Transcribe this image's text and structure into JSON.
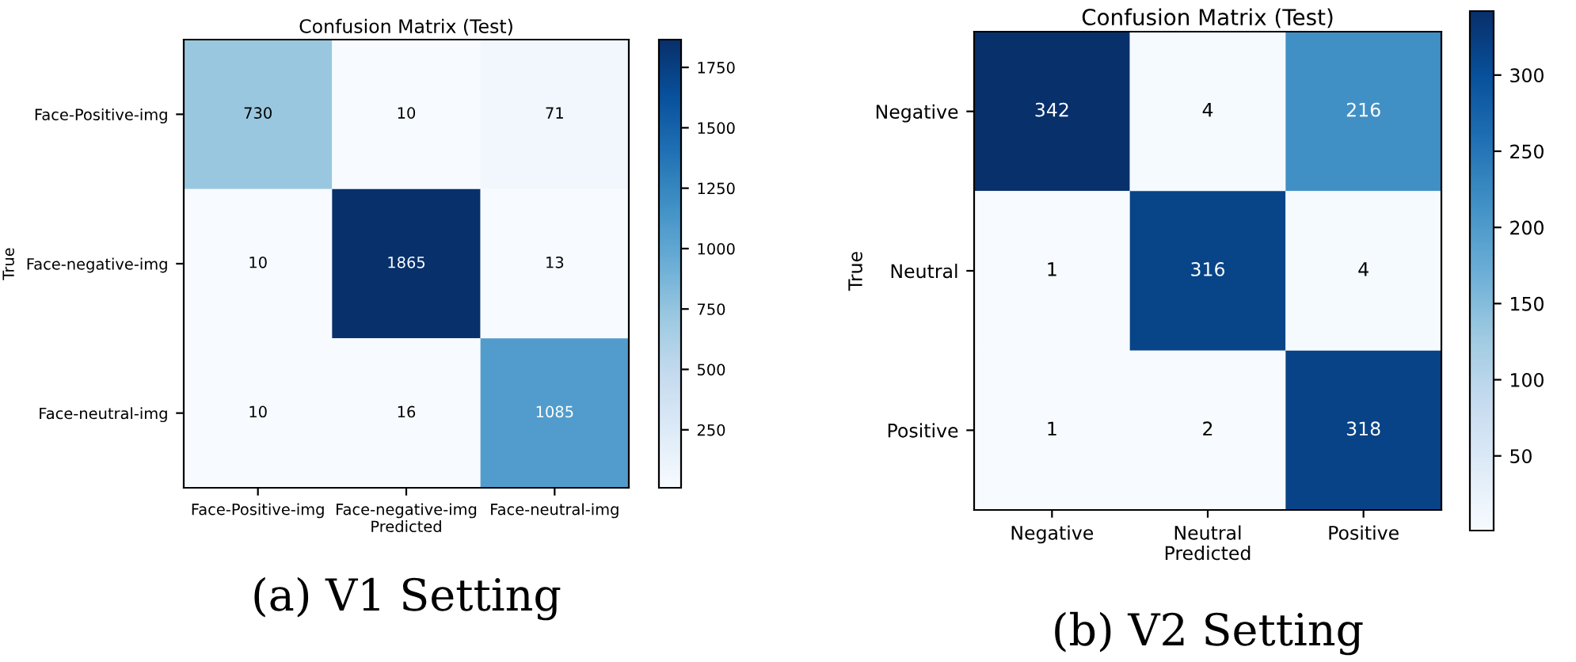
{
  "chart_data": [
    {
      "type": "heatmap",
      "title": "Confusion Matrix (Test)",
      "xlabel": "Predicted",
      "ylabel": "True",
      "categories": [
        "Face-Positive-img",
        "Face-negative-img",
        "Face-neutral-img"
      ],
      "y_categories": [
        "Face-Positive-img",
        "Face-negative-img",
        "Face-neutral-img"
      ],
      "cells": [
        [
          730,
          10,
          71
        ],
        [
          10,
          1865,
          13
        ],
        [
          10,
          16,
          1085
        ]
      ],
      "clim": [
        10,
        1865
      ],
      "cticks": [
        250,
        500,
        750,
        1000,
        1250,
        1500,
        1750
      ],
      "data_labels": true,
      "annotations": [
        "(a) V1 Setting"
      ]
    },
    {
      "type": "heatmap",
      "title": "Confusion Matrix (Test)",
      "xlabel": "Predicted",
      "ylabel": "True",
      "categories": [
        "Negative",
        "Neutral",
        "Positive"
      ],
      "y_categories": [
        "Negative",
        "Neutral",
        "Positive"
      ],
      "cells": [
        [
          342,
          4,
          216
        ],
        [
          1,
          316,
          4
        ],
        [
          1,
          2,
          318
        ]
      ],
      "clim": [
        1,
        342
      ],
      "cticks": [
        50,
        100,
        150,
        200,
        250,
        300
      ],
      "data_labels": true,
      "annotations": [
        "(b) V2 Setting"
      ]
    }
  ]
}
